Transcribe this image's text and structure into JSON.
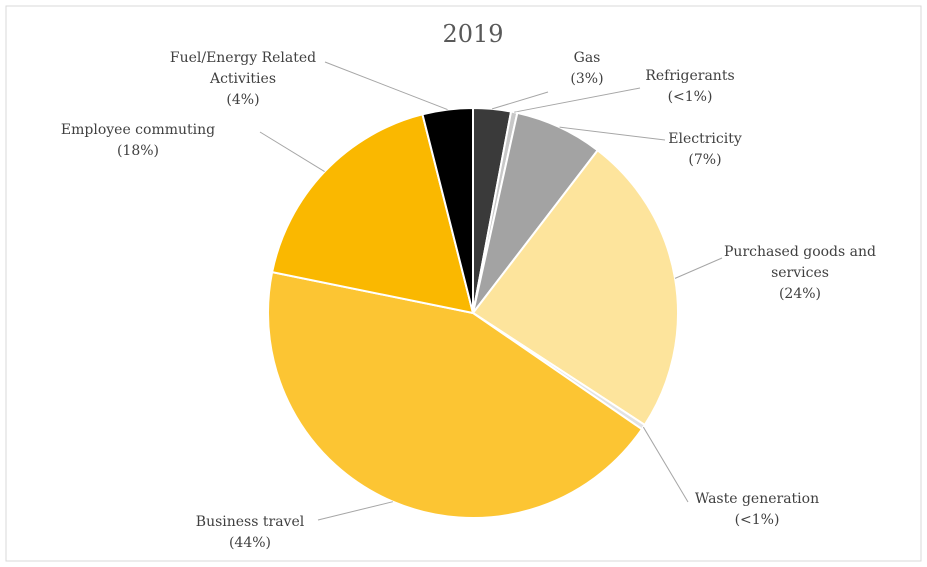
{
  "chart_data": {
    "type": "pie",
    "title": "2019",
    "categories": [
      "Gas",
      "Refrigerants",
      "Electricity",
      "Purchased goods and services",
      "Waste generation",
      "Business travel",
      "Employee commuting",
      "Fuel/Energy Related Activities"
    ],
    "values": [
      3,
      0.5,
      7,
      24,
      0.4,
      44,
      18,
      4
    ],
    "value_labels": [
      "(3%)",
      "(<1%)",
      "(7%)",
      "(24%)",
      "(<1%)",
      "(44%)",
      "(18%)",
      "(4%)"
    ],
    "colors": [
      "#3a3a3a",
      "#c8c8c8",
      "#a3a3a3",
      "#fde49c",
      "#e2e2e2",
      "#fcc533",
      "#fab800",
      "#000000"
    ]
  }
}
